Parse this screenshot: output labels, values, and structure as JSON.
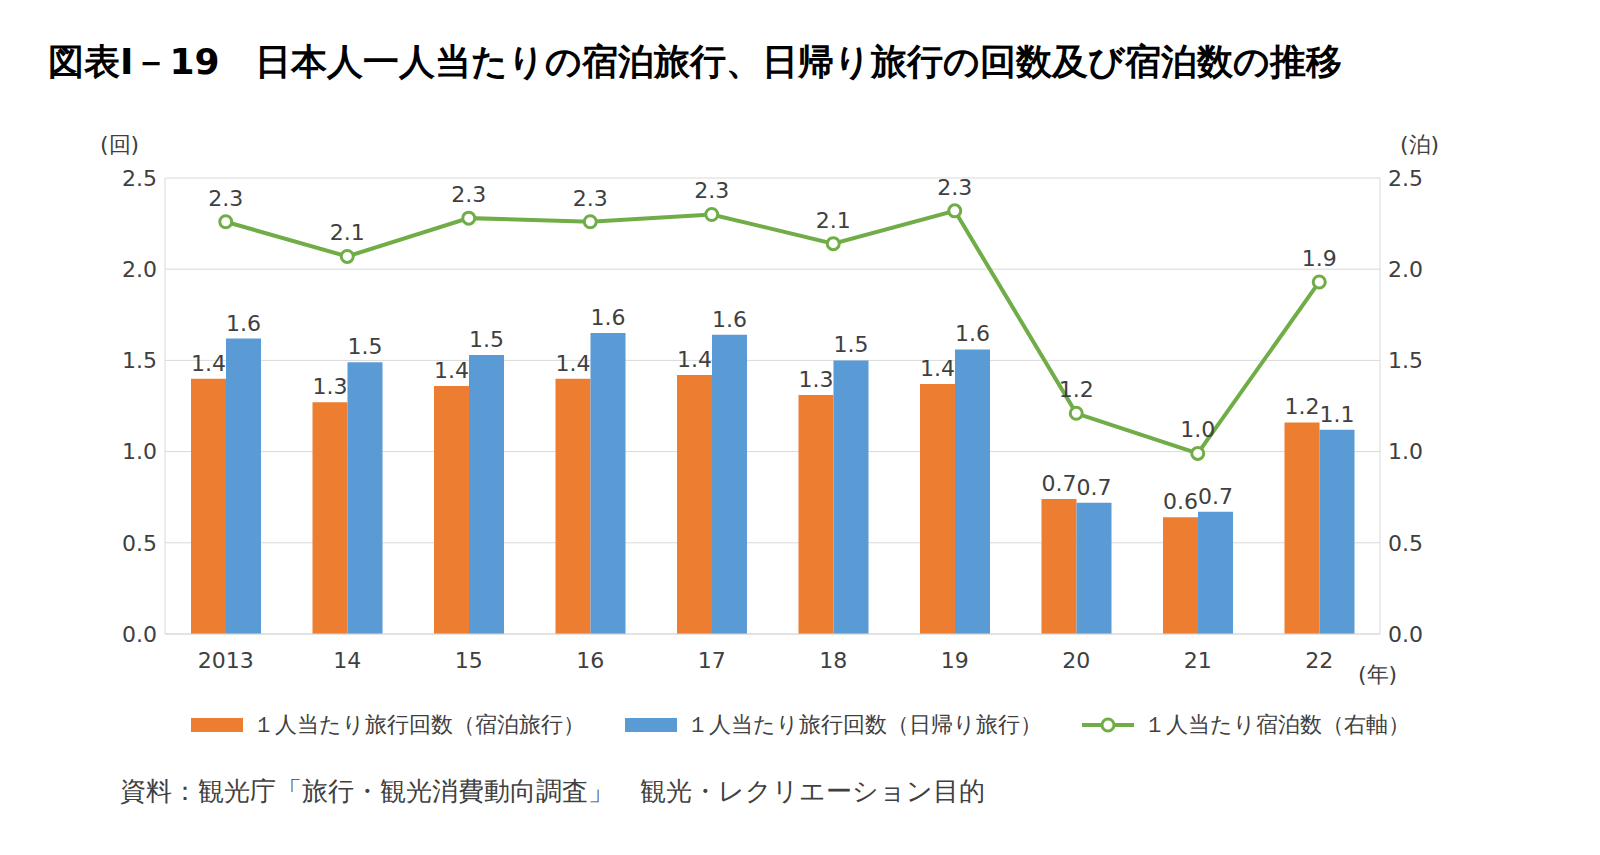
{
  "chart_data": {
    "type": "bar",
    "title": "図表Ⅰ－19　日本人一人当たりの宿泊旅行、日帰り旅行の回数及び宿泊数の推移",
    "source": "資料：観光庁「旅行・観光消費動向調査」　観光・レクリエーション目的",
    "ylabel": "(回)",
    "y2label": "(泊)",
    "xlabel": "(年)",
    "categories": [
      "2013",
      "14",
      "15",
      "16",
      "17",
      "18",
      "19",
      "20",
      "21",
      "22"
    ],
    "series": [
      {
        "name": "１人当たり旅行回数（宿泊旅行）",
        "type": "bar",
        "color": "#ed7d31",
        "values": [
          1.4,
          1.27,
          1.36,
          1.4,
          1.42,
          1.31,
          1.37,
          0.74,
          0.64,
          1.16
        ],
        "value_labels": [
          "1.4",
          "1.3",
          "1.4",
          "1.4",
          "1.4",
          "1.3",
          "1.4",
          "0.7",
          "0.6",
          "1.2"
        ]
      },
      {
        "name": "１人当たり旅行回数（日帰り旅行）",
        "type": "bar",
        "color": "#5b9bd5",
        "values": [
          1.62,
          1.49,
          1.53,
          1.65,
          1.64,
          1.5,
          1.56,
          0.72,
          0.67,
          1.12
        ],
        "value_labels": [
          "1.6",
          "1.5",
          "1.5",
          "1.6",
          "1.6",
          "1.5",
          "1.6",
          "0.7",
          "0.7",
          "1.1"
        ]
      },
      {
        "name": "１人当たり宿泊数（右軸）",
        "type": "line",
        "axis": "y2",
        "color": "#70ad47",
        "marker": "circle",
        "values": [
          2.26,
          2.07,
          2.28,
          2.26,
          2.3,
          2.14,
          2.32,
          1.21,
          0.99,
          1.93
        ],
        "value_labels": [
          "2.3",
          "2.1",
          "2.3",
          "2.3",
          "2.3",
          "2.1",
          "2.3",
          "1.2",
          "1.0",
          "1.9"
        ]
      }
    ],
    "ylim": [
      0,
      2.5
    ],
    "yticks": [
      {
        "value": 0,
        "label": "0.0"
      },
      {
        "value": 0.5,
        "label": "0.5"
      },
      {
        "value": 1,
        "label": "1.0"
      },
      {
        "value": 1.5,
        "label": "1.5"
      },
      {
        "value": 2,
        "label": "2.0"
      },
      2.5
    ],
    "y2lim": [
      0,
      2.5
    ],
    "y2ticks": [
      {
        "value": 0,
        "label": "0.0"
      },
      {
        "value": 0.5,
        "label": "0.5"
      },
      {
        "value": 1,
        "label": "1.0"
      },
      {
        "value": 1.5,
        "label": "1.5"
      },
      {
        "value": 2,
        "label": "2.0"
      },
      2.5
    ],
    "grid": true,
    "legend": "bottom",
    "data_labels": true
  }
}
